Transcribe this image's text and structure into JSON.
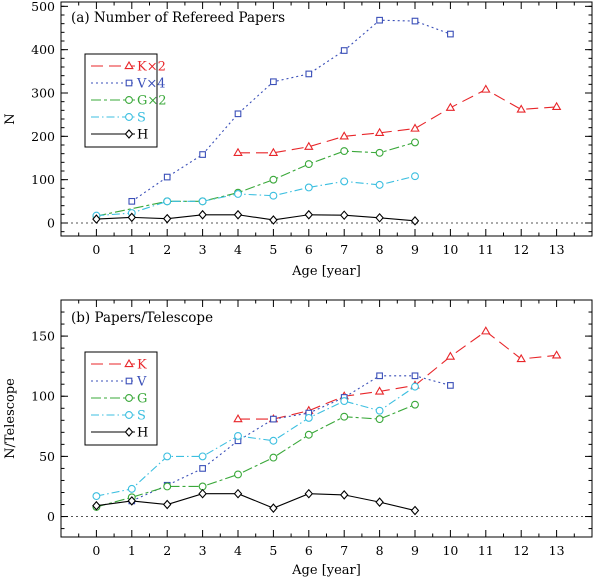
{
  "figure": {
    "xlabel": "Age [year]"
  },
  "colors": {
    "K": "#e8262a",
    "V": "#3a4fb8",
    "G": "#3aa83a",
    "S": "#3cbfe0",
    "H": "#000000",
    "zero_line": "#555555"
  },
  "chart_data": [
    {
      "type": "line",
      "title": "(a) Number of Refereed Papers",
      "xlabel": "Age [year]",
      "ylabel": "N",
      "xlim": [
        -1,
        14
      ],
      "ylim": [
        -30,
        510
      ],
      "xticks": [
        0,
        1,
        2,
        3,
        4,
        5,
        6,
        7,
        8,
        9,
        10,
        11,
        12,
        13
      ],
      "yticks": [
        0,
        100,
        200,
        300,
        400,
        500
      ],
      "grid": false,
      "legend_position": "upper-left",
      "series": [
        {
          "key": "K",
          "name": "K×2",
          "marker": "triangle",
          "dash": "long-dash",
          "x": [
            4,
            5,
            6,
            7,
            8,
            9,
            10,
            11,
            12,
            13
          ],
          "y": [
            162,
            162,
            176,
            200,
            208,
            218,
            266,
            308,
            262,
            268
          ]
        },
        {
          "key": "V",
          "name": "V×4",
          "marker": "square",
          "dash": "dotted",
          "x": [
            1,
            2,
            3,
            4,
            5,
            6,
            7,
            8,
            9,
            10
          ],
          "y": [
            50,
            106,
            158,
            252,
            326,
            344,
            398,
            468,
            466,
            436
          ]
        },
        {
          "key": "G",
          "name": "G×2",
          "marker": "circle",
          "dash": "long-short",
          "x": [
            0,
            2,
            3,
            4,
            5,
            6,
            7,
            8,
            9
          ],
          "y": [
            16,
            50,
            50,
            70,
            100,
            136,
            166,
            162,
            186
          ]
        },
        {
          "key": "S",
          "name": "S",
          "marker": "circle",
          "dash": "dash-dot",
          "x": [
            0,
            1,
            2,
            3,
            4,
            5,
            6,
            7,
            8,
            9
          ],
          "y": [
            17,
            23,
            50,
            50,
            67,
            63,
            82,
            96,
            88,
            108
          ]
        },
        {
          "key": "H",
          "name": "H",
          "marker": "diamond",
          "dash": "solid",
          "x": [
            0,
            1,
            2,
            3,
            4,
            5,
            6,
            7,
            8,
            9
          ],
          "y": [
            9,
            13,
            10,
            19,
            19,
            7,
            19,
            18,
            12,
            5
          ]
        }
      ]
    },
    {
      "type": "line",
      "title": "(b) Papers/Telescope",
      "xlabel": "Age [year]",
      "ylabel": "N/Telescope",
      "xlim": [
        -1,
        14
      ],
      "ylim": [
        -17,
        180
      ],
      "xticks": [
        0,
        1,
        2,
        3,
        4,
        5,
        6,
        7,
        8,
        9,
        10,
        11,
        12,
        13
      ],
      "yticks": [
        0,
        50,
        100,
        150
      ],
      "grid": false,
      "legend_position": "upper-left",
      "series": [
        {
          "key": "K",
          "name": "K",
          "marker": "triangle",
          "dash": "long-dash",
          "x": [
            4,
            5,
            6,
            7,
            8,
            9,
            10,
            11,
            12,
            13
          ],
          "y": [
            81,
            81,
            88,
            100,
            104,
            109,
            133,
            154,
            131,
            134
          ]
        },
        {
          "key": "V",
          "name": "V",
          "marker": "square",
          "dash": "dotted",
          "x": [
            1,
            2,
            3,
            4,
            5,
            6,
            7,
            8,
            9,
            10
          ],
          "y": [
            13,
            26,
            40,
            63,
            81,
            86,
            99,
            117,
            117,
            109
          ]
        },
        {
          "key": "G",
          "name": "G",
          "marker": "circle",
          "dash": "long-short",
          "x": [
            0,
            1,
            2,
            3,
            4,
            5,
            6,
            7,
            8,
            9
          ],
          "y": [
            8,
            16,
            25,
            25,
            35,
            49,
            68,
            83,
            81,
            93
          ]
        },
        {
          "key": "S",
          "name": "S",
          "marker": "circle",
          "dash": "dash-dot",
          "x": [
            0,
            1,
            2,
            3,
            4,
            5,
            6,
            7,
            8,
            9
          ],
          "y": [
            17,
            23,
            50,
            50,
            67,
            63,
            82,
            96,
            88,
            108
          ]
        },
        {
          "key": "H",
          "name": "H",
          "marker": "diamond",
          "dash": "solid",
          "x": [
            0,
            1,
            2,
            3,
            4,
            5,
            6,
            7,
            8,
            9
          ],
          "y": [
            9,
            13,
            10,
            19,
            19,
            7,
            19,
            18,
            12,
            5
          ]
        }
      ]
    }
  ]
}
